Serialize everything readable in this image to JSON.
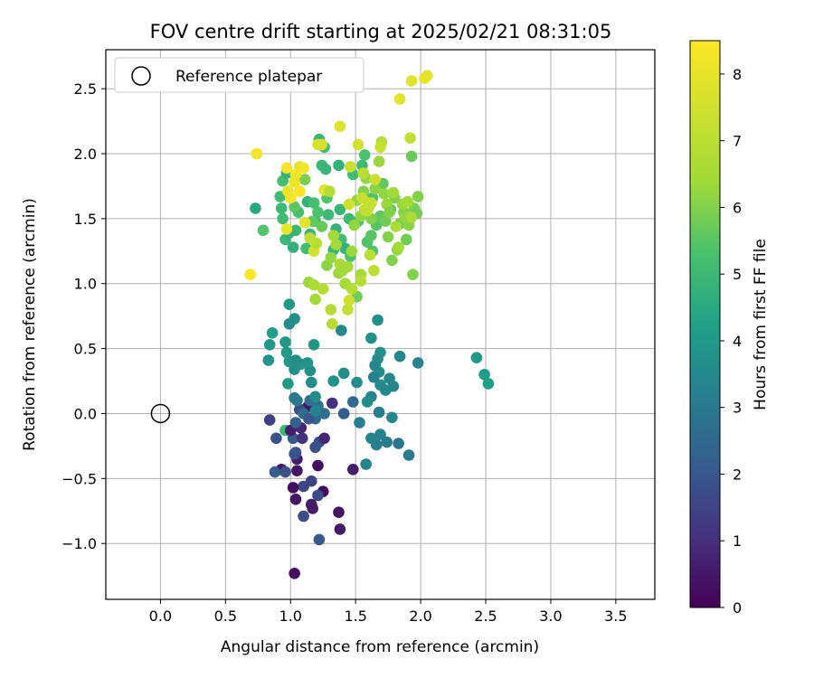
{
  "chart_data": {
    "type": "scatter",
    "title": "FOV centre drift starting at 2025/02/21 08:31:05",
    "xlabel": "Angular distance from reference (arcmin)",
    "ylabel": "Rotation from reference (arcmin)",
    "xlim": [
      -0.42,
      3.8
    ],
    "ylim": [
      -1.43,
      2.8
    ],
    "xticks": [
      "0.0",
      "0.5",
      "1.0",
      "1.5",
      "2.0",
      "2.5",
      "3.0",
      "3.5"
    ],
    "xtick_values": [
      0,
      0.5,
      1,
      1.5,
      2,
      2.5,
      3,
      3.5
    ],
    "yticks": [
      "−1.0",
      "−0.5",
      "0.0",
      "0.5",
      "1.0",
      "1.5",
      "2.0",
      "2.5"
    ],
    "ytick_values": [
      -1,
      -0.5,
      0,
      0.5,
      1,
      1.5,
      2,
      2.5
    ],
    "grid": true,
    "legend": {
      "position": "top-left",
      "entries": [
        "Reference platepar"
      ]
    },
    "reference_point": {
      "x": 0.0,
      "y": 0.0
    },
    "colorbar": {
      "label": "Hours from first FF file",
      "min": 0,
      "max": 8.5,
      "ticks": [
        "0",
        "1",
        "2",
        "3",
        "4",
        "5",
        "6",
        "7",
        "8"
      ],
      "tick_values": [
        0,
        1,
        2,
        3,
        4,
        5,
        6,
        7,
        8
      ],
      "colormap": "viridis"
    },
    "points": [
      [
        1.03,
        -1.23,
        0.3
      ],
      [
        1.38,
        -0.89,
        0.5
      ],
      [
        1.22,
        -0.97,
        2.0
      ],
      [
        1.37,
        -0.76,
        0.4
      ],
      [
        1.17,
        -0.73,
        0.6
      ],
      [
        1.1,
        -0.79,
        1.8
      ],
      [
        1.16,
        -0.7,
        0.5
      ],
      [
        1.04,
        -0.66,
        0.4
      ],
      [
        1.25,
        -0.6,
        0.2
      ],
      [
        1.21,
        -0.63,
        1.7
      ],
      [
        1.1,
        -0.56,
        1.6
      ],
      [
        1.02,
        -0.57,
        0.3
      ],
      [
        1.16,
        -0.52,
        1.5
      ],
      [
        0.93,
        -0.43,
        0.3
      ],
      [
        0.96,
        -0.45,
        1.8
      ],
      [
        0.88,
        -0.45,
        2.2
      ],
      [
        1.05,
        -0.44,
        0.4
      ],
      [
        1.21,
        -0.4,
        0.3
      ],
      [
        1.05,
        -0.35,
        0.6
      ],
      [
        1.03,
        -0.31,
        2.1
      ],
      [
        1.04,
        -0.3,
        1.9
      ],
      [
        1.48,
        -0.43,
        0.6
      ],
      [
        1.58,
        -0.39,
        3.3
      ],
      [
        1.19,
        -0.26,
        1.8
      ],
      [
        1.22,
        -0.22,
        1.9
      ],
      [
        0.89,
        -0.19,
        1.9
      ],
      [
        1.02,
        -0.19,
        2.0
      ],
      [
        1.09,
        -0.19,
        1.1
      ],
      [
        1.26,
        -0.19,
        0.8
      ],
      [
        0.96,
        -0.13,
        5.0
      ],
      [
        1.0,
        -0.13,
        0.6
      ],
      [
        1.08,
        -0.11,
        0.8
      ],
      [
        1.04,
        -0.07,
        2.3
      ],
      [
        0.84,
        -0.05,
        1.4
      ],
      [
        1.13,
        0.05,
        0.4
      ],
      [
        1.07,
        0.03,
        1.7
      ],
      [
        1.1,
        0.0,
        2.6
      ],
      [
        1.19,
        -0.04,
        2.5
      ],
      [
        1.14,
        -0.04,
        2.0
      ],
      [
        1.26,
        0.0,
        2.7
      ],
      [
        1.32,
        0.08,
        1.0
      ],
      [
        1.21,
        0.06,
        2.8
      ],
      [
        1.15,
        0.1,
        2.7
      ],
      [
        1.05,
        0.1,
        3.0
      ],
      [
        1.03,
        0.12,
        3.0
      ],
      [
        1.41,
        0.0,
        2.2
      ],
      [
        1.48,
        0.09,
        2.5
      ],
      [
        1.53,
        -0.07,
        3.2
      ],
      [
        1.62,
        0.13,
        3.3
      ],
      [
        1.68,
        0.01,
        3.2
      ],
      [
        1.62,
        -0.19,
        3.3
      ],
      [
        1.66,
        -0.24,
        3.2
      ],
      [
        1.69,
        -0.16,
        3.3
      ],
      [
        1.74,
        -0.22,
        3.1
      ],
      [
        1.78,
        -0.03,
        3.4
      ],
      [
        1.83,
        -0.23,
        2.9
      ],
      [
        1.91,
        -0.32,
        3.0
      ],
      [
        0.98,
        0.23,
        4.0
      ],
      [
        1.03,
        0.34,
        3.7
      ],
      [
        1.08,
        0.38,
        3.9
      ],
      [
        1.15,
        0.33,
        3.7
      ],
      [
        1.16,
        0.24,
        3.6
      ],
      [
        1.19,
        0.13,
        3.6
      ],
      [
        1.19,
        0.02,
        3.3
      ],
      [
        1.33,
        0.25,
        3.8
      ],
      [
        1.41,
        0.31,
        3.7
      ],
      [
        1.51,
        0.24,
        3.6
      ],
      [
        1.59,
        0.09,
        3.7
      ],
      [
        1.68,
        0.32,
        3.6
      ],
      [
        1.69,
        0.22,
        3.6
      ],
      [
        1.73,
        0.18,
        3.5
      ],
      [
        1.76,
        0.27,
        3.5
      ],
      [
        1.79,
        0.21,
        3.5
      ],
      [
        1.65,
        0.37,
        3.6
      ],
      [
        1.64,
        0.28,
        3.3
      ],
      [
        0.83,
        0.41,
        3.8
      ],
      [
        0.84,
        0.53,
        4.0
      ],
      [
        0.86,
        0.62,
        4.1
      ],
      [
        0.97,
        0.47,
        4.0
      ],
      [
        0.96,
        0.55,
        3.9
      ],
      [
        0.99,
        0.4,
        3.9
      ],
      [
        1.04,
        0.41,
        3.7
      ],
      [
        0.99,
        0.69,
        3.6
      ],
      [
        1.03,
        0.73,
        3.7
      ],
      [
        0.99,
        0.84,
        4.0
      ],
      [
        1.13,
        0.39,
        3.8
      ],
      [
        1.18,
        0.53,
        3.9
      ],
      [
        1.39,
        0.64,
        3.5
      ],
      [
        1.62,
        0.58,
        3.7
      ],
      [
        1.69,
        0.47,
        3.8
      ],
      [
        1.67,
        0.72,
        3.7
      ],
      [
        1.84,
        0.44,
        3.4
      ],
      [
        1.98,
        0.39,
        3.3
      ],
      [
        2.43,
        0.43,
        4.0
      ],
      [
        2.49,
        0.3,
        4.1
      ],
      [
        2.52,
        0.23,
        4.2
      ],
      [
        1.67,
        0.42,
        3.6
      ],
      [
        1.65,
        0.37,
        3.4
      ],
      [
        0.73,
        1.58,
        4.5
      ],
      [
        0.79,
        1.41,
        5.4
      ],
      [
        0.93,
        1.58,
        5.0
      ],
      [
        0.94,
        1.79,
        5.2
      ],
      [
        0.97,
        1.85,
        4.8
      ],
      [
        0.92,
        1.67,
        5.1
      ],
      [
        0.94,
        1.5,
        5.1
      ],
      [
        0.96,
        1.34,
        5.0
      ],
      [
        0.99,
        1.39,
        4.8
      ],
      [
        1.02,
        1.28,
        4.7
      ],
      [
        1.04,
        1.41,
        4.9
      ],
      [
        1.06,
        1.55,
        5.2
      ],
      [
        1.12,
        1.27,
        5.1
      ],
      [
        1.15,
        1.38,
        4.9
      ],
      [
        1.13,
        1.63,
        4.8
      ],
      [
        1.19,
        1.48,
        5.0
      ],
      [
        1.18,
        1.62,
        5.2
      ],
      [
        1.22,
        2.11,
        4.9
      ],
      [
        1.24,
        1.91,
        5.0
      ],
      [
        1.26,
        2.05,
        5.1
      ],
      [
        1.27,
        1.88,
        4.9
      ],
      [
        1.28,
        1.66,
        5.4
      ],
      [
        1.29,
        1.53,
        5.0
      ],
      [
        1.33,
        1.26,
        4.9
      ],
      [
        1.35,
        1.42,
        4.8
      ],
      [
        1.37,
        1.91,
        4.8
      ],
      [
        1.38,
        1.57,
        4.9
      ],
      [
        1.39,
        1.34,
        5.1
      ],
      [
        1.42,
        1.27,
        4.8
      ],
      [
        1.45,
        1.5,
        5.0
      ],
      [
        1.46,
        1.21,
        5.3
      ],
      [
        1.48,
        1.84,
        5.1
      ],
      [
        1.52,
        1.48,
        5.2
      ],
      [
        1.55,
        1.91,
        5.0
      ],
      [
        1.57,
        1.99,
        5.3
      ],
      [
        1.59,
        1.32,
        5.4
      ],
      [
        1.62,
        1.37,
        5.5
      ],
      [
        1.63,
        1.25,
        5.4
      ],
      [
        1.63,
        1.66,
        5.3
      ],
      [
        1.66,
        1.45,
        5.5
      ],
      [
        1.69,
        1.52,
        5.6
      ],
      [
        1.71,
        1.77,
        5.6
      ],
      [
        1.73,
        1.48,
        5.8
      ],
      [
        1.75,
        1.36,
        6.0
      ],
      [
        1.77,
        1.57,
        5.6
      ],
      [
        1.78,
        1.18,
        6.0
      ],
      [
        1.8,
        1.66,
        6.0
      ],
      [
        1.82,
        1.26,
        6.2
      ],
      [
        1.84,
        1.46,
        5.8
      ],
      [
        1.87,
        1.55,
        6.0
      ],
      [
        1.89,
        1.34,
        5.8
      ],
      [
        1.91,
        1.45,
        6.1
      ],
      [
        1.93,
        1.98,
        5.7
      ],
      [
        1.94,
        1.07,
        6.0
      ],
      [
        1.95,
        1.58,
        5.9
      ],
      [
        1.97,
        1.54,
        5.8
      ],
      [
        1.98,
        1.67,
        6.0
      ],
      [
        1.03,
        1.59,
        5.5
      ],
      [
        1.11,
        1.8,
        5.9
      ],
      [
        1.17,
        1.48,
        5.6
      ],
      [
        1.21,
        1.55,
        5.3
      ],
      [
        1.24,
        1.44,
        5.7
      ],
      [
        1.28,
        1.14,
        6.1
      ],
      [
        1.31,
        1.2,
        6.2
      ],
      [
        1.33,
        1.37,
        6.4
      ],
      [
        1.35,
        1.3,
        6.5
      ],
      [
        1.37,
        1.08,
        6.3
      ],
      [
        1.38,
        1.15,
        6.6
      ],
      [
        1.4,
        1.1,
        6.5
      ],
      [
        1.42,
        1.0,
        6.5
      ],
      [
        1.44,
        1.13,
        6.4
      ],
      [
        1.47,
        1.25,
        6.3
      ],
      [
        1.49,
        1.45,
        6.2
      ],
      [
        1.51,
        1.64,
        6.2
      ],
      [
        1.54,
        1.52,
        6.2
      ],
      [
        1.56,
        1.71,
        6.0
      ],
      [
        1.58,
        1.81,
        6.2
      ],
      [
        1.6,
        1.59,
        6.1
      ],
      [
        1.62,
        1.5,
        6.0
      ],
      [
        1.65,
        1.73,
        6.1
      ],
      [
        1.68,
        1.94,
        6.3
      ],
      [
        1.7,
        2.09,
        6.8
      ],
      [
        1.72,
        1.69,
        6.2
      ],
      [
        1.74,
        1.61,
        6.3
      ],
      [
        1.76,
        1.55,
        6.0
      ],
      [
        1.79,
        1.7,
        6.4
      ],
      [
        1.81,
        1.44,
        6.6
      ],
      [
        1.83,
        1.28,
        6.4
      ],
      [
        1.86,
        1.61,
        6.3
      ],
      [
        1.88,
        1.51,
        6.2
      ],
      [
        1.9,
        1.63,
        6.4
      ],
      [
        1.92,
        2.12,
        7.2
      ],
      [
        1.93,
        1.51,
        6.6
      ],
      [
        1.54,
        1.07,
        6.5
      ],
      [
        1.51,
        0.9,
        5.8
      ],
      [
        1.14,
        1.01,
        6.3
      ],
      [
        1.18,
        0.99,
        6.6
      ],
      [
        1.19,
        0.88,
        6.5
      ],
      [
        1.25,
        0.96,
        6.9
      ],
      [
        1.31,
        0.8,
        6.8
      ],
      [
        1.32,
        0.69,
        6.9
      ],
      [
        1.44,
        0.8,
        7.2
      ],
      [
        1.45,
        0.87,
        7.4
      ],
      [
        1.47,
        0.96,
        6.8
      ],
      [
        1.54,
        1.02,
        6.8
      ],
      [
        1.61,
        1.22,
        7.0
      ],
      [
        1.64,
        1.1,
        7.0
      ],
      [
        1.59,
        1.56,
        7.2
      ],
      [
        1.62,
        1.62,
        7.4
      ],
      [
        1.65,
        1.8,
        7.4
      ],
      [
        1.69,
        2.05,
        7.3
      ],
      [
        1.45,
        1.61,
        7.5
      ],
      [
        1.55,
        1.66,
        7.3
      ],
      [
        1.52,
        2.07,
        7.6
      ],
      [
        1.56,
        1.85,
        7.0
      ],
      [
        1.46,
        1.9,
        7.3
      ],
      [
        1.21,
        2.07,
        7.7
      ],
      [
        1.24,
        2.07,
        7.6
      ],
      [
        1.38,
        2.21,
        7.8
      ],
      [
        1.84,
        2.42,
        7.9
      ],
      [
        1.93,
        2.56,
        7.8
      ],
      [
        2.03,
        2.58,
        8.1
      ],
      [
        2.05,
        2.6,
        7.9
      ],
      [
        1.07,
        1.9,
        8.0
      ],
      [
        1.04,
        1.84,
        8.2
      ],
      [
        0.97,
        1.89,
        8.2
      ],
      [
        0.74,
        2.0,
        8.3
      ],
      [
        0.69,
        1.07,
        8.4
      ],
      [
        0.97,
        1.42,
        8.1
      ],
      [
        0.98,
        1.71,
        8.0
      ],
      [
        1.0,
        1.66,
        8.3
      ],
      [
        1.03,
        1.78,
        8.1
      ],
      [
        1.07,
        1.71,
        8.4
      ],
      [
        1.1,
        1.89,
        8.2
      ],
      [
        1.11,
        1.47,
        7.9
      ],
      [
        1.18,
        1.25,
        7.6
      ],
      [
        1.26,
        1.72,
        7.9
      ],
      [
        1.2,
        1.31,
        7.0
      ],
      [
        1.15,
        1.35,
        7.1
      ],
      [
        1.57,
        1.57,
        7.1
      ],
      [
        1.6,
        1.62,
        7.2
      ],
      [
        1.3,
        1.71,
        6.8
      ]
    ]
  }
}
